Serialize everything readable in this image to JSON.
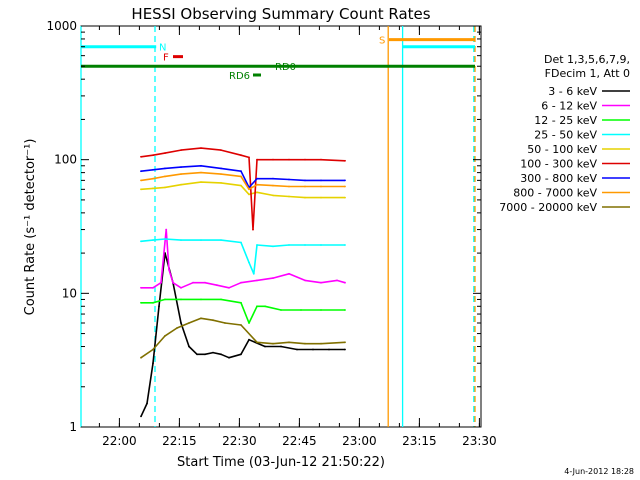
{
  "chart_data": {
    "type": "line",
    "title": "HESSI Observing Summary Count Rates",
    "xlabel": "Start Time (03-Jun-12 21:50:22)",
    "ylabel": "Count Rate (s⁻¹ detector⁻¹)",
    "y_scale": "log",
    "ylim": [
      1,
      1000
    ],
    "y_ticks": [
      {
        "value": 1,
        "label": "1"
      },
      {
        "value": 10,
        "label": "10"
      },
      {
        "value": 100,
        "label": "100"
      },
      {
        "value": 1000,
        "label": "1000"
      }
    ],
    "x_unit": "minutes after 21:50:22",
    "xlim": [
      0,
      100
    ],
    "x_ticks": [
      {
        "value": 9.6,
        "label": "22:00"
      },
      {
        "value": 24.6,
        "label": "22:15"
      },
      {
        "value": 39.6,
        "label": "22:30"
      },
      {
        "value": 54.6,
        "label": "22:45"
      },
      {
        "value": 69.6,
        "label": "23:00"
      },
      {
        "value": 84.6,
        "label": "23:15"
      },
      {
        "value": 99.6,
        "label": "23:30"
      }
    ],
    "legend_header": [
      "Det 1,3,5,6,7,9,",
      "FDecim 1, Att 0"
    ],
    "legend_position": "right",
    "series": [
      {
        "name": "3 - 6 keV",
        "color": "#000000",
        "x": [
          15,
          16.5,
          18,
          19.5,
          21,
          23,
          25,
          27,
          29,
          31,
          33,
          35,
          37,
          40,
          42,
          46,
          50,
          54,
          58,
          62,
          66
        ],
        "y": [
          1.2,
          1.5,
          3,
          8,
          20,
          12,
          6,
          4,
          3.5,
          3.5,
          3.6,
          3.5,
          3.3,
          3.5,
          4.5,
          4,
          4,
          3.8,
          3.8,
          3.8,
          3.8
        ]
      },
      {
        "name": "6 - 12 keV",
        "color": "#ff00ff",
        "x": [
          15,
          18,
          20,
          21.3,
          22,
          23,
          25,
          28,
          31,
          34,
          37,
          40,
          44,
          48,
          52,
          56,
          60,
          64,
          66
        ],
        "y": [
          11,
          11,
          12,
          30,
          15,
          12,
          11,
          12,
          12,
          11.5,
          11,
          12,
          12.5,
          13,
          14,
          12.5,
          12,
          12.5,
          12
        ]
      },
      {
        "name": "12 - 25 keV",
        "color": "#00ff00",
        "x": [
          15,
          18,
          21,
          25,
          30,
          35,
          40,
          42,
          44,
          46,
          50,
          55,
          60,
          66
        ],
        "y": [
          8.5,
          8.5,
          9,
          9,
          9,
          9,
          8.5,
          6,
          8,
          8,
          7.5,
          7.5,
          7.5,
          7.5
        ]
      },
      {
        "name": "25 - 50 keV",
        "color": "#00ffff",
        "x": [
          15,
          18,
          21,
          25,
          30,
          35,
          40,
          42,
          43.2,
          44,
          48,
          52,
          56,
          60,
          66
        ],
        "y": [
          24.5,
          25,
          25.5,
          25,
          25,
          25,
          24,
          17,
          14,
          23,
          22.5,
          23,
          23,
          23,
          23
        ]
      },
      {
        "name": "50 - 100 keV",
        "color": "#e6d200",
        "x": [
          15,
          18,
          21,
          25,
          30,
          35,
          40,
          42,
          44,
          48,
          52,
          56,
          60,
          66
        ],
        "y": [
          60,
          61,
          62,
          65,
          68,
          67,
          64,
          55,
          57,
          54,
          53,
          52,
          52,
          52
        ]
      },
      {
        "name": "100 - 300 keV",
        "color": "#dd0000",
        "x": [
          15,
          18,
          21,
          25,
          30,
          35,
          40,
          42,
          43,
          44,
          48,
          52,
          56,
          60,
          66
        ],
        "y": [
          105,
          108,
          112,
          118,
          122,
          118,
          108,
          104,
          30,
          100,
          100,
          100,
          100,
          100,
          98
        ]
      },
      {
        "name": "300 - 800 keV",
        "color": "#0000ff",
        "x": [
          15,
          18,
          21,
          25,
          30,
          35,
          40,
          42,
          44,
          48,
          52,
          56,
          60,
          66
        ],
        "y": [
          82,
          84,
          86,
          88,
          90,
          86,
          82,
          62,
          72,
          72,
          71,
          70,
          70,
          70
        ]
      },
      {
        "name": "800 - 7000 keV",
        "color": "#ff9900",
        "x": [
          15,
          18,
          21,
          25,
          30,
          35,
          40,
          42,
          44,
          48,
          52,
          56,
          60,
          66
        ],
        "y": [
          70,
          72,
          75,
          78,
          80,
          78,
          75,
          60,
          65,
          64,
          63,
          63,
          63,
          63
        ]
      },
      {
        "name": "7000 - 20000 keV",
        "color": "#807000",
        "x": [
          15,
          18,
          21,
          24,
          27,
          30,
          33,
          36,
          40,
          44,
          48,
          52,
          56,
          60,
          66
        ],
        "y": [
          3.3,
          3.8,
          4.8,
          5.5,
          6,
          6.5,
          6.3,
          6,
          5.8,
          4.3,
          4.2,
          4.3,
          4.2,
          4.2,
          4.3
        ]
      }
    ],
    "state_bars": [
      {
        "label": "N",
        "color": "#00ffff",
        "x_start": 0,
        "x_end": 18.8,
        "y": 700,
        "label_x": 19.5
      },
      {
        "label": "N",
        "color": "#00ffff",
        "x_start": 80.5,
        "x_end": 98.5,
        "y": 700,
        "label_x": null
      },
      {
        "label": "S",
        "color": "#ff9900",
        "x_start": 77,
        "x_end": 98.5,
        "y": 790,
        "label_x": 74.5
      },
      {
        "label": "F",
        "color": "#dd0000",
        "x_start": 23,
        "x_end": 25.5,
        "y": 590,
        "label_x": 20.5
      },
      {
        "label": "RD0",
        "color": "#008000",
        "x_start": 0,
        "x_end": 98.5,
        "y": 500,
        "label_x": 48.5
      },
      {
        "label": "RD6",
        "color": "#008000",
        "x_start": 43,
        "x_end": 45,
        "y": 430,
        "label_x": 37
      }
    ],
    "vertical_lines": [
      {
        "x": 0,
        "color": "#00ffff",
        "style": "solid"
      },
      {
        "x": 18.5,
        "color": "#00ffff",
        "style": "dashed"
      },
      {
        "x": 76.8,
        "color": "#ff9900",
        "style": "solid"
      },
      {
        "x": 80.4,
        "color": "#00ffff",
        "style": "solid"
      },
      {
        "x": 98.2,
        "color": "#00ffff",
        "style": "dashed"
      },
      {
        "x": 98.5,
        "color": "#ff9900",
        "style": "dashed"
      }
    ],
    "footer_date": "4-Jun-2012 18:28"
  }
}
